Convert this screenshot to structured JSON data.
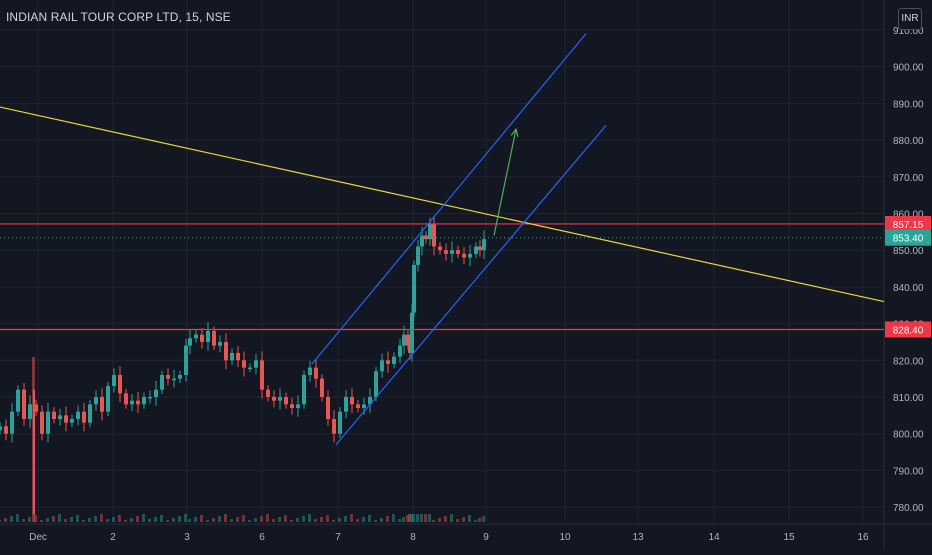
{
  "header": {
    "title": "INDIAN RAIL TOUR CORP LTD, 15, NSE",
    "currency": "INR"
  },
  "colors": {
    "background": "#131722",
    "grid": "#1f2430",
    "up": "#26a69a",
    "down": "#ef5350",
    "channel": "#2962ff",
    "trendline": "#e8d63a",
    "arrow": "#4caf50",
    "resistance": "#f23645",
    "last_price": "#26a69a",
    "axis_text": "#b2b5be"
  },
  "chart_data": {
    "type": "candlestick",
    "symbol": "INDIAN RAIL TOUR CORP LTD",
    "interval": "15",
    "exchange": "NSE",
    "ylim": [
      775,
      912
    ],
    "y_ticks": [
      "910.00",
      "900.00",
      "890.00",
      "880.00",
      "870.00",
      "860.00",
      "850.00",
      "840.00",
      "830.00",
      "820.00",
      "810.00",
      "800.00",
      "790.00",
      "780.00"
    ],
    "x_ticks": [
      "Dec",
      "2",
      "3",
      "6",
      "7",
      "8",
      "9",
      "10",
      "13",
      "14",
      "15",
      "16"
    ],
    "horizontal_levels": [
      {
        "price": 857.15,
        "label": "857.15"
      },
      {
        "price": 828.4,
        "label": "828.40"
      }
    ],
    "last_price": {
      "price": 853.4,
      "label": "853.40"
    },
    "candles_close_path": [
      [
        0,
        802
      ],
      [
        6,
        800
      ],
      [
        12,
        806
      ],
      [
        18,
        812
      ],
      [
        24,
        804
      ],
      [
        30,
        808
      ],
      [
        36,
        806
      ],
      [
        42,
        800
      ],
      [
        48,
        806
      ],
      [
        54,
        804
      ],
      [
        60,
        805
      ],
      [
        66,
        803
      ],
      [
        72,
        804
      ],
      [
        78,
        806
      ],
      [
        84,
        803
      ],
      [
        90,
        808
      ],
      [
        96,
        810
      ],
      [
        102,
        806
      ],
      [
        108,
        813
      ],
      [
        114,
        816
      ],
      [
        120,
        811
      ],
      [
        126,
        808
      ],
      [
        132,
        809
      ],
      [
        138,
        808
      ],
      [
        144,
        810
      ],
      [
        150,
        810
      ],
      [
        156,
        812
      ],
      [
        162,
        816
      ],
      [
        168,
        815
      ],
      [
        174,
        815
      ],
      [
        180,
        816
      ],
      [
        186,
        824
      ],
      [
        190,
        826
      ],
      [
        196,
        827
      ],
      [
        202,
        825
      ],
      [
        208,
        828
      ],
      [
        214,
        824
      ],
      [
        220,
        825
      ],
      [
        226,
        820
      ],
      [
        232,
        822
      ],
      [
        238,
        820
      ],
      [
        244,
        818
      ],
      [
        250,
        818
      ],
      [
        256,
        820
      ],
      [
        262,
        812
      ],
      [
        268,
        810
      ],
      [
        274,
        809
      ],
      [
        280,
        810
      ],
      [
        286,
        808
      ],
      [
        292,
        807
      ],
      [
        298,
        808
      ],
      [
        304,
        816
      ],
      [
        310,
        818
      ],
      [
        316,
        815
      ],
      [
        322,
        810
      ],
      [
        328,
        804
      ],
      [
        334,
        800
      ],
      [
        340,
        806
      ],
      [
        346,
        810
      ],
      [
        352,
        808
      ],
      [
        358,
        807
      ],
      [
        364,
        808
      ],
      [
        370,
        810
      ],
      [
        376,
        817
      ],
      [
        382,
        820
      ],
      [
        388,
        819
      ],
      [
        394,
        821
      ],
      [
        400,
        824
      ],
      [
        404,
        827
      ],
      [
        408,
        824
      ],
      [
        410,
        822
      ],
      [
        412,
        833
      ],
      [
        414,
        846
      ],
      [
        418,
        851
      ],
      [
        422,
        854
      ],
      [
        426,
        853
      ],
      [
        430,
        857
      ],
      [
        434,
        851
      ],
      [
        440,
        850
      ],
      [
        446,
        849
      ],
      [
        452,
        850
      ],
      [
        458,
        849
      ],
      [
        464,
        848
      ],
      [
        470,
        849
      ],
      [
        476,
        851
      ],
      [
        480,
        850
      ],
      [
        484,
        853
      ]
    ],
    "channel_upper": [
      [
        312,
        819
      ],
      [
        586,
        909
      ]
    ],
    "channel_lower": [
      [
        336,
        797
      ],
      [
        606,
        884
      ]
    ],
    "trendline": [
      [
        0,
        889
      ],
      [
        884,
        836
      ]
    ],
    "projection_arrow": [
      [
        494,
        854
      ],
      [
        516,
        883
      ]
    ],
    "volume_note": "volume histogram along bottom of price pane"
  }
}
